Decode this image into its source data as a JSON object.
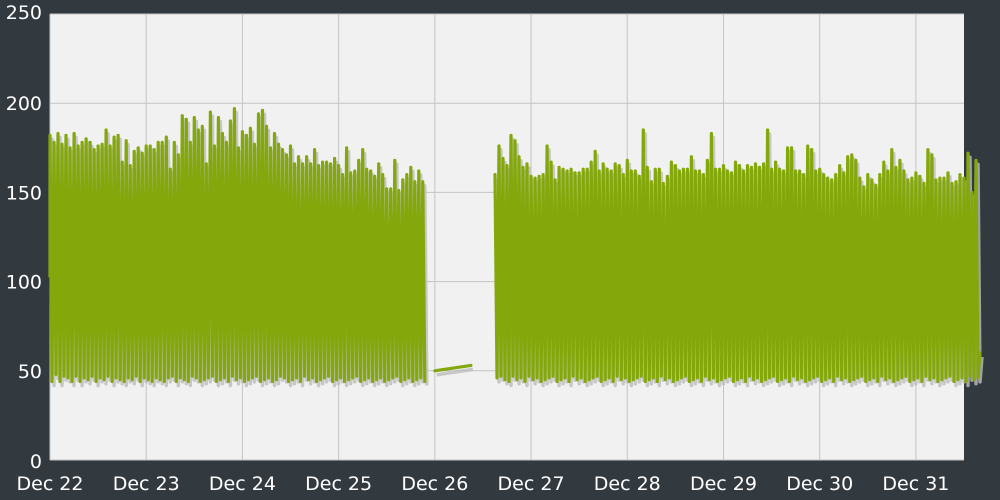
{
  "colors": {
    "background": "#323a40",
    "plot_area": "#f1f1f1",
    "grid": "#c4c4c4",
    "series": "#84a80c",
    "shadow": "#bdbdbd",
    "tick_text": "#ffffff"
  },
  "chart_data": {
    "type": "line",
    "title": "",
    "xlabel": "",
    "ylabel": "",
    "grid": true,
    "legend": "none",
    "ylim": [
      0,
      250
    ],
    "xlim": [
      "Dec 22",
      "Dec 31 12:00"
    ],
    "yticks": [
      "0",
      "50",
      "100",
      "150",
      "200",
      "250"
    ],
    "xticks": [
      "Dec 22",
      "Dec 23",
      "Dec 24",
      "Dec 25",
      "Dec 26",
      "Dec 27",
      "Dec 28",
      "Dec 29",
      "Dec 30",
      "Dec 31"
    ],
    "series": [
      {
        "name": "",
        "step_hours": 1,
        "segments": [
          {
            "start": "Dec 22 00:00",
            "peaks": [
              182,
              178,
              183,
              177,
              182,
              175,
              183,
              176,
              178,
              180,
              178,
              174,
              176,
              177,
              185,
              176,
              181,
              182,
              167,
              179,
              165,
              173,
              175,
              172,
              176,
              176,
              174,
              178,
              178,
              181,
              163,
              178,
              171,
              193,
              191,
              178,
              192,
              185,
              187,
              166,
              195,
              176,
              192,
              183,
              178,
              190,
              197,
              175,
              184,
              182,
              186,
              177,
              194,
              196,
              187,
              175,
              183,
              177,
              174,
              171,
              176,
              166,
              170,
              166,
              170,
              166,
              174,
              165,
              167,
              167,
              166,
              169,
              165,
              160,
              175,
              161,
              162,
              168,
              174,
              163,
              162,
              159,
              166,
              160,
              152,
              152,
              168,
              151,
              157,
              160,
              164,
              156,
              162,
              156
            ],
            "troughs": [
              44,
              48,
              44,
              47,
              46,
              44,
              47,
              44,
              46,
              45,
              47,
              44,
              46,
              45,
              47,
              44,
              46,
              45,
              44,
              46,
              45,
              47,
              44,
              46,
              45,
              44,
              46,
              45,
              44,
              46,
              47,
              44,
              46,
              45,
              44,
              47,
              46,
              44,
              45,
              46,
              47,
              44,
              45,
              46,
              44,
              47,
              45,
              46,
              44,
              45,
              46,
              47,
              44,
              45,
              46,
              44,
              45,
              47,
              46,
              44,
              45,
              46,
              44,
              47,
              45,
              46,
              44,
              45,
              46,
              47,
              44,
              45,
              46,
              44,
              45,
              46,
              47,
              44,
              45,
              46,
              44,
              45,
              46,
              44,
              45,
              46,
              47,
              44,
              45,
              46,
              44,
              45,
              46,
              44
            ]
          },
          {
            "start": "Dec 26 15:00",
            "peaks": [
              160,
              176,
              169,
              165,
              182,
              179,
              170,
              164,
              166,
              159,
              158,
              159,
              160,
              176,
              167,
              157,
              164,
              163,
              162,
              163,
              161,
              161,
              163,
              163,
              167,
              173,
              162,
              166,
              163,
              162,
              166,
              165,
              160,
              168,
              162,
              162,
              159,
              185,
              164,
              156,
              163,
              163,
              155,
              159,
              167,
              165,
              162,
              163,
              163,
              170,
              162,
              162,
              160,
              168,
              183,
              163,
              163,
              165,
              162,
              161,
              167,
              165,
              162,
              165,
              164,
              166,
              164,
              166,
              185,
              163,
              167,
              163,
              162,
              175,
              175,
              162,
              162,
              160,
              176,
              174,
              162,
              163,
              160,
              158,
              157,
              160,
              165,
              161,
              170,
              171,
              168,
              158,
              153,
              160,
              157,
              154,
              160,
              167,
              162,
              174,
              164,
              168,
              162,
              157,
              158,
              161,
              159,
              155,
              174,
              171,
              157,
              158,
              158,
              161,
              155,
              156,
              160,
              158,
              172,
              150,
              168
            ],
            "troughs": [
              46,
              47,
              45,
              44,
              47,
              45,
              46,
              44,
              47,
              45,
              46,
              44,
              45,
              46,
              47,
              44,
              45,
              46,
              44,
              47,
              45,
              46,
              44,
              45,
              46,
              47,
              44,
              45,
              46,
              44,
              47,
              45,
              46,
              44,
              45,
              46,
              47,
              44,
              45,
              46,
              44,
              47,
              45,
              46,
              44,
              45,
              46,
              47,
              44,
              45,
              46,
              44,
              47,
              45,
              46,
              44,
              45,
              46,
              47,
              44,
              45,
              46,
              44,
              47,
              45,
              46,
              44,
              45,
              46,
              47,
              44,
              45,
              46,
              44,
              47,
              45,
              46,
              44,
              45,
              46,
              47,
              44,
              45,
              46,
              44,
              47,
              45,
              46,
              44,
              45,
              46,
              47,
              44,
              45,
              46,
              44,
              47,
              45,
              46,
              44,
              45,
              46,
              47,
              44,
              45,
              46,
              44,
              47,
              45,
              46,
              44,
              45,
              46,
              47,
              44,
              45,
              46,
              44,
              47,
              45,
              46
            ]
          }
        ],
        "gap_line": {
          "from": [
            "Dec 26 00:00",
            50
          ],
          "to": [
            "Dec 26 09:00",
            53
          ]
        },
        "endpoints": {
          "first_value": 103,
          "last_value": 60
        }
      }
    ]
  }
}
